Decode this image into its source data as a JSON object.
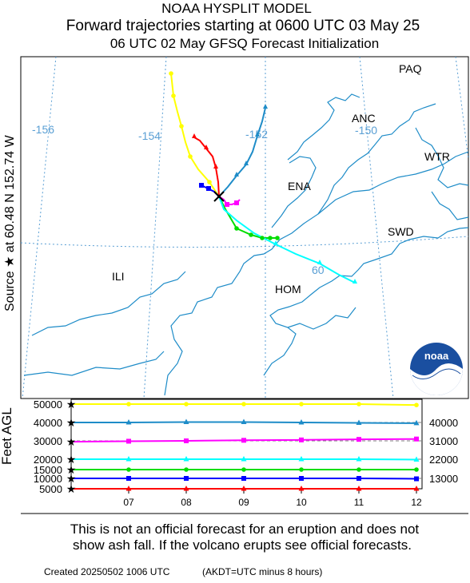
{
  "header": {
    "line1": "NOAA HYSPLIT MODEL",
    "line2": "Forward trajectories starting at 0600 UTC 03 May 25",
    "line3": "06 UTC 02 May    GFSQ  Forecast Initialization"
  },
  "side_label": "Source ★  at   60.48 N  152.74 W",
  "map": {
    "lon_labels": [
      "-156",
      "-154",
      "-152",
      "-150"
    ],
    "lat_labels": [
      "60"
    ],
    "places": [
      "PAQ",
      "ANC",
      "WTR",
      "ENA",
      "SWD",
      "ILI",
      "HOM"
    ],
    "source_marker": "black-x-star",
    "logo_text": "noaa"
  },
  "chart_data": {
    "type": "line",
    "ylabel": "Feet AGL",
    "x_ticks": [
      "07",
      "08",
      "09",
      "10",
      "11",
      "12"
    ],
    "y_left_ticks": [
      "50000",
      "40000",
      "30000",
      "20000",
      "15000",
      "10000",
      "5000"
    ],
    "y_right_labels": [
      "40000",
      "31000",
      "22000",
      "13000"
    ],
    "series": [
      {
        "color": "#ffff00",
        "marker": "circle",
        "x": [
          0,
          1,
          2,
          3,
          4,
          5,
          6
        ],
        "y": [
          50000,
          50000,
          50000,
          50000,
          50000,
          50000,
          49500
        ]
      },
      {
        "color": "#1e8cc8",
        "marker": "triangle",
        "x": [
          0,
          1,
          2,
          3,
          4,
          5,
          6
        ],
        "y": [
          40000,
          40000,
          40200,
          40200,
          40000,
          39800,
          39600
        ]
      },
      {
        "color": "#ff00ff",
        "marker": "square",
        "x": [
          0,
          1,
          2,
          3,
          4,
          5,
          6
        ],
        "y": [
          29500,
          29800,
          30000,
          30300,
          30500,
          30800,
          31000
        ]
      },
      {
        "color": "#00ffff",
        "marker": "triangle",
        "x": [
          0,
          1,
          2,
          3,
          4,
          5,
          6
        ],
        "y": [
          20000,
          20000,
          20000,
          20000,
          20000,
          20000,
          19800
        ]
      },
      {
        "color": "#00dd00",
        "marker": "circle",
        "x": [
          0,
          1,
          2,
          3,
          4,
          5,
          6
        ],
        "y": [
          15000,
          15000,
          15000,
          15000,
          15000,
          15000,
          15000
        ]
      },
      {
        "color": "#0000ff",
        "marker": "square",
        "x": [
          0,
          1,
          2,
          3,
          4,
          5,
          6
        ],
        "y": [
          10000,
          10000,
          10000,
          10000,
          10000,
          10000,
          9800
        ]
      },
      {
        "color": "#ff0000",
        "marker": "triangle",
        "x": [
          0,
          1,
          2,
          3,
          4,
          5,
          6
        ],
        "y": [
          5000,
          4800,
          4600,
          4500,
          4400,
          4300,
          4200
        ]
      }
    ]
  },
  "footer": {
    "notice1": "This is not an official forecast for an eruption and does not",
    "notice2": "show ash fall. If the volcano erupts see official forecasts.",
    "created": "Created 20250502 1006 UTC",
    "akdt": "(AKDT=UTC minus 8 hours)"
  }
}
